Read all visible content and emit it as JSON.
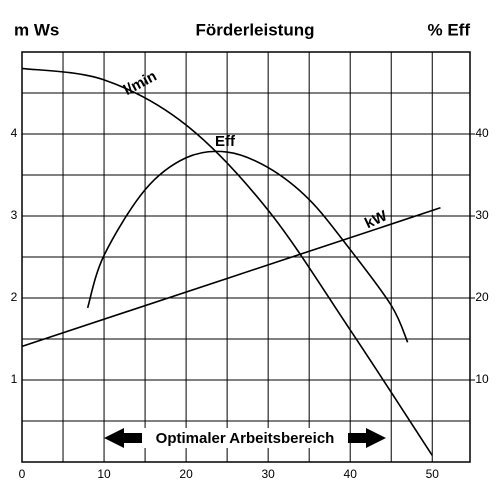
{
  "chart_data": {
    "type": "line",
    "title": "Förderleistung",
    "y_axis_label": "m Ws",
    "y2_axis_label": "% Eff",
    "annotation": "Optimaler Arbeitsbereich",
    "xlim": [
      0,
      54.6
    ],
    "xticks": [
      0,
      10,
      20,
      30,
      40,
      50
    ],
    "x_minor_ticks": [
      5,
      15,
      25,
      35,
      45
    ],
    "ylim": [
      0,
      5
    ],
    "yticks": [
      1,
      2,
      3,
      4
    ],
    "y_minor_ticks": [
      0.5,
      1.5,
      2.5,
      3.5,
      4.5
    ],
    "y2lim": [
      0,
      50
    ],
    "y2ticks": [
      10,
      20,
      30,
      40
    ],
    "grid": true,
    "series": [
      {
        "name": "l/min",
        "color": "#000000",
        "x": [
          0,
          10,
          20,
          30,
          40,
          50
        ],
        "values": [
          4.8,
          4.66,
          4.11,
          3.07,
          1.61,
          0.08
        ]
      },
      {
        "name": "Eff",
        "color": "#000000",
        "axis": "y2",
        "x": [
          8,
          10,
          15,
          20,
          25,
          30,
          35,
          40,
          45,
          47
        ],
        "values": [
          18.8,
          25.2,
          33.2,
          37.1,
          37.8,
          35.9,
          32,
          25.9,
          19.1,
          14.6
        ]
      },
      {
        "name": "kW",
        "color": "#000000",
        "axis": "y2",
        "x": [
          0,
          51
        ],
        "values": [
          14.1,
          31
        ]
      }
    ]
  }
}
